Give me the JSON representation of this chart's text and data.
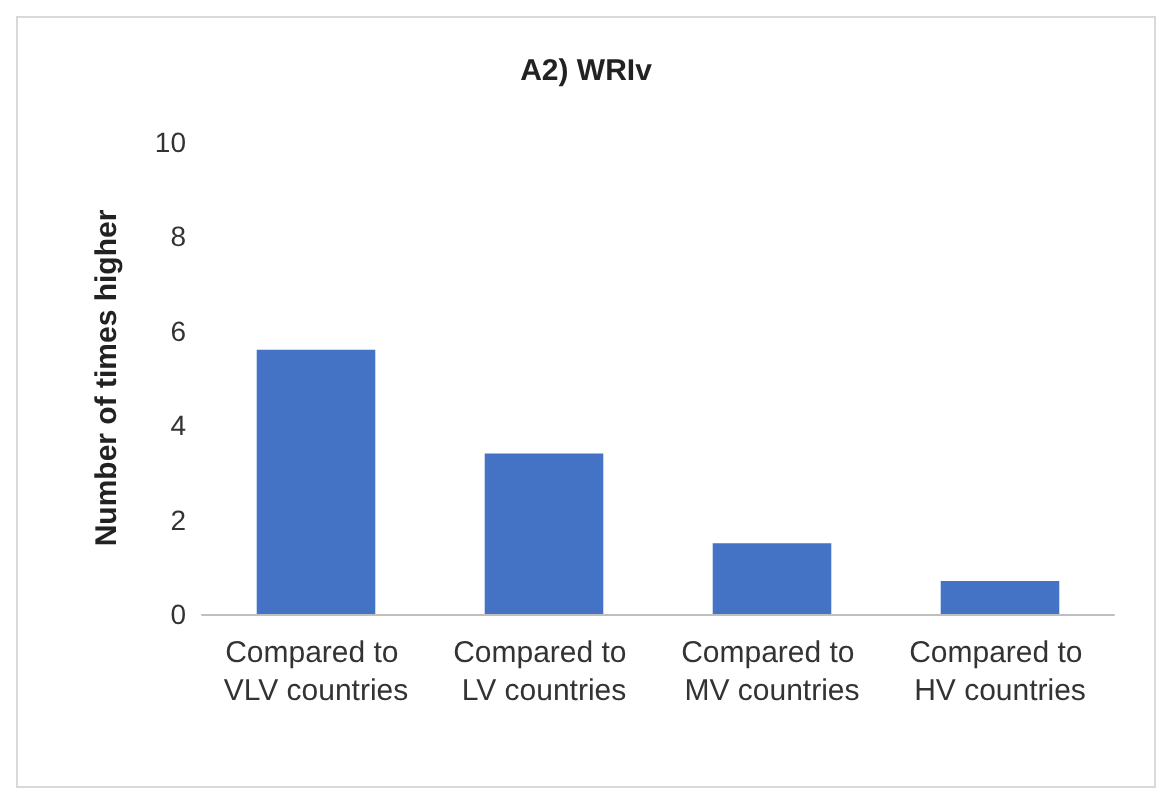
{
  "chart_data": {
    "type": "bar",
    "title": "A2) WRIv",
    "ylabel": "Number of times higher",
    "categories": [
      "Compared to VLV countries",
      "Compared to LV countries",
      "Compared to MV countries",
      "Compared to HV countries"
    ],
    "values": [
      5.6,
      3.4,
      1.5,
      0.7
    ],
    "color": "#4472c4",
    "ylim": [
      0,
      10
    ],
    "yticks": [
      0,
      2,
      4,
      6,
      8,
      10
    ],
    "grid": false
  }
}
